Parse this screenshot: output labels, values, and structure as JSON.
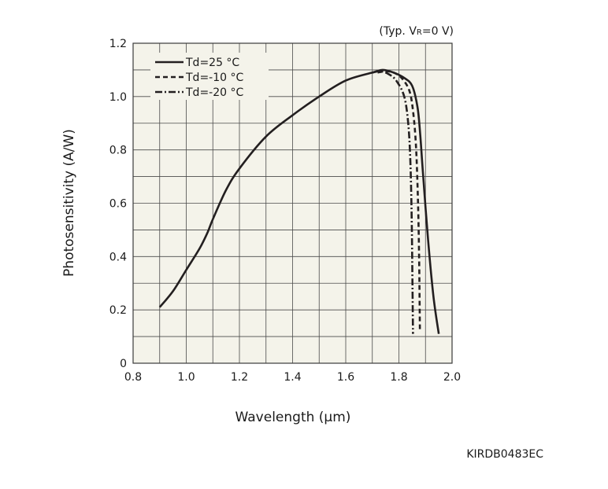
{
  "chart_data": {
    "type": "line",
    "condition": {
      "prefix": "(Typ. V",
      "sub": "R",
      "suffix": "=0 V)"
    },
    "xlabel": "Wavelength (μm)",
    "ylabel": "Photosensitivity (A/W)",
    "figure_code": "KIRDB0483EC",
    "xlim": [
      0.8,
      2.0
    ],
    "ylim": [
      0,
      1.2
    ],
    "x_ticks": [
      "0.8",
      "1.0",
      "1.2",
      "1.4",
      "1.6",
      "1.8",
      "2.0"
    ],
    "y_ticks": [
      "0",
      "0.2",
      "0.4",
      "0.6",
      "0.8",
      "1.0",
      "1.2"
    ],
    "grid": true,
    "legend_position": "top-left",
    "plot_background": "#f4f3ea",
    "line_color": "#231f20",
    "series": [
      {
        "name": "Td=25 °C",
        "style": "solid",
        "x": [
          0.9,
          0.95,
          1.0,
          1.05,
          1.08,
          1.1,
          1.15,
          1.2,
          1.3,
          1.4,
          1.5,
          1.6,
          1.7,
          1.74,
          1.78,
          1.82,
          1.85,
          1.87,
          1.88,
          1.89,
          1.91,
          1.93,
          1.95
        ],
        "y": [
          0.21,
          0.27,
          0.35,
          0.43,
          0.49,
          0.54,
          0.65,
          0.73,
          0.85,
          0.93,
          1.0,
          1.06,
          1.09,
          1.1,
          1.09,
          1.07,
          1.04,
          0.96,
          0.86,
          0.72,
          0.46,
          0.25,
          0.11
        ]
      },
      {
        "name": "Td=-10 °C",
        "style": "dashed",
        "x": [
          1.72,
          1.75,
          1.78,
          1.81,
          1.84,
          1.855,
          1.865,
          1.872,
          1.876,
          1.878,
          1.879
        ],
        "y": [
          1.09,
          1.095,
          1.09,
          1.07,
          1.02,
          0.93,
          0.8,
          0.6,
          0.4,
          0.22,
          0.12
        ]
      },
      {
        "name": "Td=-20 °C",
        "style": "dash-dot",
        "x": [
          1.7,
          1.73,
          1.76,
          1.79,
          1.82,
          1.835,
          1.843,
          1.848,
          1.851,
          1.853
        ],
        "y": [
          1.09,
          1.095,
          1.085,
          1.06,
          1.0,
          0.9,
          0.76,
          0.55,
          0.3,
          0.11
        ]
      }
    ]
  }
}
